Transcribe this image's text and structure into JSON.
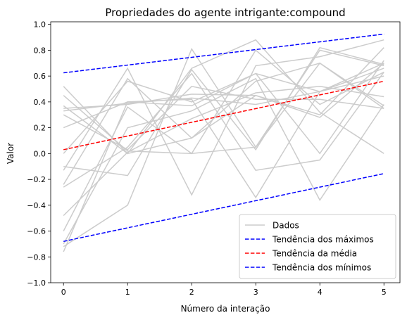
{
  "chart_data": {
    "type": "line",
    "title": "Propriedades do agente intrigante:compound",
    "xlabel": "Número da interação",
    "ylabel": "Valor",
    "x": [
      0,
      1,
      2,
      3,
      4,
      5
    ],
    "xlim": [
      -0.2,
      5.25
    ],
    "ylim": [
      -1.0,
      1.02
    ],
    "xticks": [
      "0",
      "1",
      "2",
      "3",
      "4",
      "5"
    ],
    "yticks": [
      "−1.0",
      "−0.8",
      "−0.6",
      "−0.4",
      "−0.2",
      "0.0",
      "0.2",
      "0.4",
      "0.6",
      "0.8",
      "1.0"
    ],
    "ytick_values": [
      -1.0,
      -0.8,
      -0.6,
      -0.4,
      -0.2,
      0.0,
      0.2,
      0.4,
      0.6,
      0.8,
      1.0
    ],
    "grid": false,
    "legend_position": "lower-right",
    "data_color": "#cccccc",
    "data_series_label": "Dados",
    "data_series": [
      [
        0.52,
        0.0,
        0.66,
        0.88,
        0.32,
        0.0
      ],
      [
        0.45,
        0.02,
        0.0,
        0.05,
        0.8,
        0.68
      ],
      [
        0.35,
        0.38,
        0.46,
        0.45,
        0.3,
        0.82
      ],
      [
        0.2,
        0.4,
        0.37,
        0.62,
        0.48,
        0.7
      ],
      [
        0.33,
        0.39,
        0.43,
        0.38,
        0.48,
        0.6
      ],
      [
        0.3,
        0.03,
        0.52,
        0.42,
        0.42,
        0.35
      ],
      [
        -0.1,
        -0.17,
        0.65,
        0.03,
        0.82,
        0.69
      ],
      [
        -0.13,
        0.66,
        -0.32,
        0.68,
        0.75,
        0.88
      ],
      [
        -0.24,
        0.58,
        0.12,
        0.45,
        0.28,
        0.7
      ],
      [
        -0.48,
        0.01,
        0.27,
        0.47,
        0.52,
        0.44
      ],
      [
        -0.6,
        0.36,
        0.0,
        0.8,
        0.38,
        0.63
      ],
      [
        -0.72,
        -0.4,
        0.81,
        0.05,
        0.7,
        0.37
      ],
      [
        -0.76,
        0.4,
        0.42,
        -0.34,
        0.48,
        0.66
      ],
      [
        0.0,
        0.56,
        0.4,
        0.62,
        0.0,
        0.72
      ],
      [
        -0.26,
        0.05,
        0.62,
        -0.13,
        -0.05,
        0.63
      ],
      [
        -0.7,
        0.2,
        0.33,
        0.58,
        -0.36,
        0.38
      ],
      [
        0.37,
        0.0,
        0.12,
        0.56,
        0.7,
        0.35
      ]
    ],
    "trends": [
      {
        "name": "Tendência dos máximos",
        "start": 0.625,
        "end": 0.925,
        "color": "#0000ff"
      },
      {
        "name": "Tendência da média",
        "start": 0.03,
        "end": 0.56,
        "color": "#ff0000"
      },
      {
        "name": "Tendência dos mínimos",
        "start": -0.68,
        "end": -0.155,
        "color": "#0000ff"
      }
    ]
  }
}
